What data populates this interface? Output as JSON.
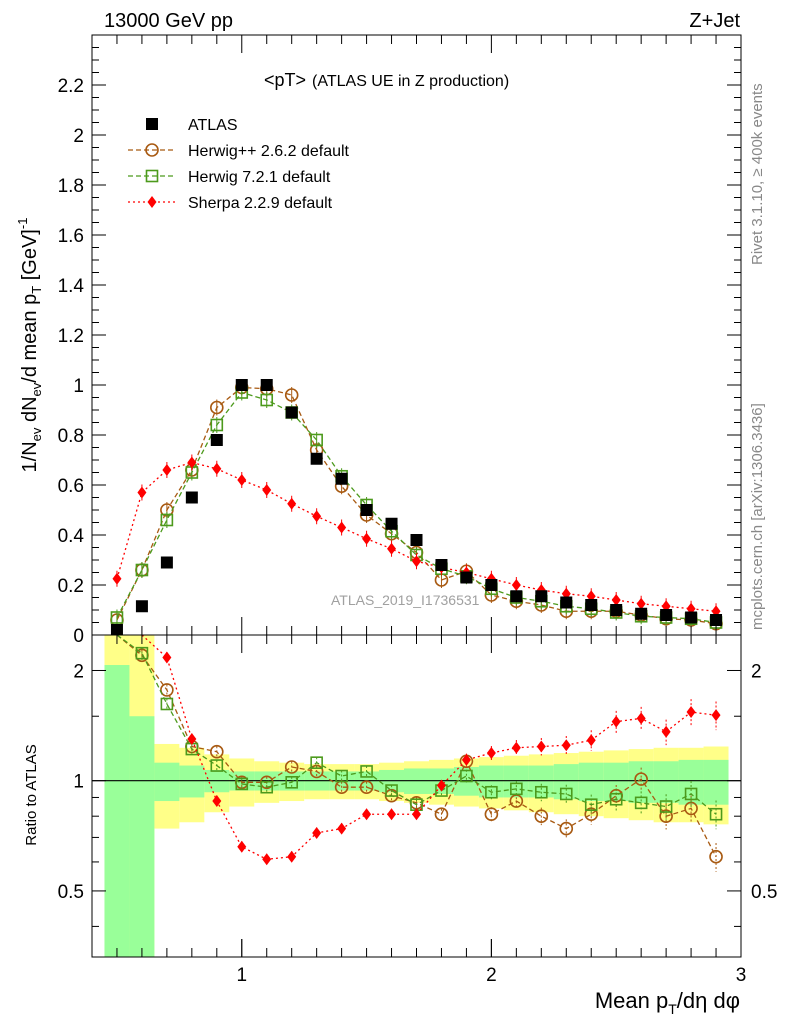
{
  "header": {
    "left": "13000 GeV pp",
    "right": "Z+Jet"
  },
  "side_labels": {
    "rivet": "Rivet 3.1.10, ≥ 400k events",
    "mcplots": "mcplots.cern.ch [arXiv:1306.3436]"
  },
  "chart_data": {
    "type": "scatter",
    "title": "<pT>",
    "subtitle": "(ATLAS UE in Z production)",
    "watermark": "ATLAS_2019_I1736531",
    "xlabel": "Mean p_T/dη dφ",
    "ylabel": "1/N_ev dN_ev/d mean p_T [GeV]^-1",
    "ratio_ylabel": "Ratio to ATLAS",
    "xlim": [
      0.4,
      3.0
    ],
    "ylim": [
      0,
      2.4
    ],
    "ratio_ylim": [
      0.33,
      2.5
    ],
    "x_ticks": [
      1,
      2,
      3
    ],
    "y_ticks": [
      0,
      0.2,
      0.4,
      0.6,
      0.8,
      1,
      1.2,
      1.4,
      1.6,
      1.8,
      2,
      2.2
    ],
    "y_tick_labels": [
      "0",
      "0.2",
      "0.4",
      "0.6",
      "0.8",
      "1",
      "1.2",
      "1.4",
      "1.6",
      "1.8",
      "2",
      "2.2"
    ],
    "ratio_y_ticks": [
      0.5,
      1,
      2
    ],
    "ratio_y_tick_labels": [
      "0.5",
      "1",
      "2"
    ],
    "ratio_right_tick_labels": [
      "0.5",
      "2"
    ],
    "legend_position": "top-left",
    "x": [
      0.5,
      0.6,
      0.7,
      0.8,
      0.9,
      1.0,
      1.1,
      1.2,
      1.3,
      1.4,
      1.5,
      1.6,
      1.7,
      1.8,
      1.9,
      2.0,
      2.1,
      2.2,
      2.3,
      2.4,
      2.5,
      2.6,
      2.7,
      2.8,
      2.9
    ],
    "series": [
      {
        "name": "ATLAS",
        "style": "data",
        "color": "#000000",
        "marker": "square-filled",
        "values": [
          0.02,
          0.115,
          0.29,
          0.55,
          0.78,
          1.0,
          1.0,
          0.89,
          0.705,
          0.625,
          0.5,
          0.445,
          0.38,
          0.28,
          0.23,
          0.2,
          0.155,
          0.155,
          0.13,
          0.12,
          0.1,
          0.085,
          0.08,
          0.07,
          0.06
        ]
      },
      {
        "name": "Herwig++ 2.6.2 default",
        "style": "mc",
        "color": "#a85a12",
        "marker": "circle-open",
        "dash": "5,3",
        "values": [
          0.06,
          0.26,
          0.5,
          0.66,
          0.91,
          0.99,
          0.985,
          0.96,
          0.74,
          0.595,
          0.48,
          0.405,
          0.33,
          0.22,
          0.255,
          0.16,
          0.135,
          0.12,
          0.095,
          0.095,
          0.095,
          0.08,
          0.065,
          0.06,
          0.045
        ]
      },
      {
        "name": "Herwig 7.2.1 default",
        "style": "mc",
        "color": "#4c9a1c",
        "marker": "square-open",
        "dash": "5,3",
        "values": [
          0.07,
          0.26,
          0.46,
          0.65,
          0.84,
          0.97,
          0.94,
          0.89,
          0.78,
          0.635,
          0.52,
          0.415,
          0.32,
          0.265,
          0.235,
          0.185,
          0.15,
          0.135,
          0.115,
          0.105,
          0.09,
          0.075,
          0.07,
          0.065,
          0.05
        ]
      },
      {
        "name": "Sherpa 2.2.9 default",
        "style": "mc",
        "color": "#ff0000",
        "marker": "diamond-filled",
        "dash": "2,3",
        "values": [
          0.225,
          0.57,
          0.66,
          0.69,
          0.665,
          0.62,
          0.58,
          0.525,
          0.475,
          0.43,
          0.385,
          0.345,
          0.295,
          0.27,
          0.25,
          0.225,
          0.2,
          0.18,
          0.165,
          0.155,
          0.14,
          0.125,
          0.115,
          0.105,
          0.095
        ]
      }
    ],
    "ratio": {
      "reference": 1,
      "band_edges": [
        0.45,
        0.55,
        0.65,
        0.75,
        0.85,
        0.95,
        1.05,
        1.15,
        1.25,
        1.35,
        1.45,
        1.55,
        1.65,
        1.75,
        1.85,
        1.95,
        2.05,
        2.15,
        2.25,
        2.35,
        2.45,
        2.55,
        2.65,
        2.75,
        2.85,
        2.95
      ],
      "band_stat": [
        [
          0.33,
          2.07
        ],
        [
          0.33,
          1.5
        ],
        [
          0.88,
          1.12
        ],
        [
          0.9,
          1.1
        ],
        [
          0.93,
          1.07
        ],
        [
          0.94,
          1.06
        ],
        [
          0.94,
          1.06
        ],
        [
          0.94,
          1.06
        ],
        [
          0.94,
          1.06
        ],
        [
          0.94,
          1.06
        ],
        [
          0.94,
          1.06
        ],
        [
          0.93,
          1.07
        ],
        [
          0.92,
          1.08
        ],
        [
          0.92,
          1.08
        ],
        [
          0.91,
          1.09
        ],
        [
          0.9,
          1.1
        ],
        [
          0.9,
          1.1
        ],
        [
          0.9,
          1.1
        ],
        [
          0.89,
          1.11
        ],
        [
          0.88,
          1.12
        ],
        [
          0.88,
          1.12
        ],
        [
          0.87,
          1.13
        ],
        [
          0.87,
          1.13
        ],
        [
          0.86,
          1.14
        ],
        [
          0.86,
          1.14
        ]
      ],
      "band_total": [
        [
          0.33,
          2.5
        ],
        [
          0.33,
          2.5
        ],
        [
          0.74,
          1.26
        ],
        [
          0.77,
          1.23
        ],
        [
          0.82,
          1.18
        ],
        [
          0.85,
          1.15
        ],
        [
          0.87,
          1.13
        ],
        [
          0.88,
          1.12
        ],
        [
          0.89,
          1.11
        ],
        [
          0.89,
          1.11
        ],
        [
          0.89,
          1.11
        ],
        [
          0.88,
          1.12
        ],
        [
          0.87,
          1.13
        ],
        [
          0.86,
          1.14
        ],
        [
          0.85,
          1.15
        ],
        [
          0.84,
          1.16
        ],
        [
          0.83,
          1.17
        ],
        [
          0.82,
          1.18
        ],
        [
          0.81,
          1.19
        ],
        [
          0.8,
          1.2
        ],
        [
          0.79,
          1.21
        ],
        [
          0.78,
          1.22
        ],
        [
          0.77,
          1.23
        ],
        [
          0.77,
          1.23
        ],
        [
          0.76,
          1.24
        ]
      ],
      "band_stat_color": "#99ff99",
      "band_total_color": "#ffff88",
      "series": [
        {
          "name": "Herwig++ 2.6.2 default",
          "values": [
            null,
            2.2,
            1.77,
            1.24,
            1.2,
            0.99,
            0.99,
            1.09,
            1.06,
            0.96,
            0.96,
            0.91,
            0.87,
            0.81,
            1.13,
            0.81,
            0.88,
            0.8,
            0.74,
            0.81,
            0.91,
            1.01,
            0.8,
            0.84,
            0.62
          ]
        },
        {
          "name": "Herwig 7.2.1 default",
          "values": [
            null,
            2.23,
            1.62,
            1.22,
            1.1,
            0.98,
            0.96,
            0.99,
            1.12,
            1.03,
            1.06,
            0.94,
            0.86,
            0.94,
            1.03,
            0.93,
            0.95,
            0.93,
            0.92,
            0.86,
            0.89,
            0.87,
            0.85,
            0.92,
            0.81
          ]
        },
        {
          "name": "Sherpa 2.2.9 default",
          "values": [
            null,
            null,
            2.17,
            1.3,
            0.88,
            0.66,
            0.61,
            0.62,
            0.72,
            0.74,
            0.81,
            0.81,
            0.81,
            0.97,
            1.14,
            1.19,
            1.23,
            1.24,
            1.25,
            1.29,
            1.45,
            1.48,
            1.36,
            1.54,
            1.51
          ]
        }
      ]
    }
  }
}
